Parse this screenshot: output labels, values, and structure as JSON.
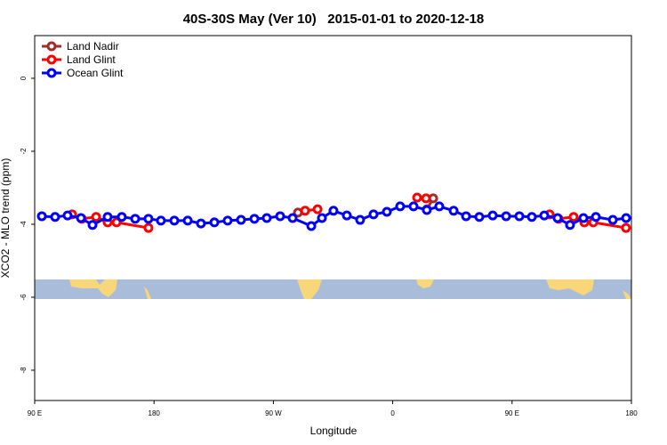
{
  "chart_data": {
    "type": "line",
    "title": "40S-30S May (Ver 10)   2015-01-01 to 2020-12-18",
    "xlabel": "Longitude",
    "ylabel": "XCO2 - MLO trend (ppm)",
    "xlim": [
      90,
      540
    ],
    "ylim": [
      -8.83,
      1.17
    ],
    "xticks": [
      {
        "value": 90,
        "label": "90 E"
      },
      180,
      {
        "value": 270,
        "label": "90 W"
      },
      {
        "value": 360,
        "label": "0"
      },
      {
        "value": 450,
        "label": "90 E"
      },
      {
        "value": 540,
        "label": "180"
      }
    ],
    "yticks": [
      0,
      -2,
      -4,
      -6,
      -8
    ],
    "legend": "top-left",
    "series": [
      {
        "name": "Land Nadir",
        "color": "#a52a2a",
        "x": [
          288.5,
          null,
          385.8,
          390.5
        ],
        "values": [
          -3.68,
          null,
          -3.59,
          -3.29
        ]
      },
      {
        "name": "Land Glint",
        "color": "#ff0000",
        "x": [
          118.2,
          125.5,
          136.3,
          145,
          151.7,
          175.8,
          null,
          293.9,
          303.3,
          null,
          378.4,
          385.1,
          null,
          478.3,
          485,
          496.4,
          504.5,
          511.2,
          535.9
        ],
        "values": [
          -3.73,
          -3.85,
          -3.8,
          -3.95,
          -3.95,
          -4.1,
          null,
          -3.63,
          -3.59,
          null,
          -3.27,
          -3.29,
          null,
          -3.73,
          -3.85,
          -3.8,
          -3.95,
          -3.95,
          -4.1
        ]
      },
      {
        "name": "Ocean Glint",
        "color": "#0000ff",
        "x": [
          95.4,
          105.4,
          114.8,
          124.9,
          133.6,
          145,
          155.7,
          165.8,
          175.8,
          185.2,
          195.3,
          205.4,
          215.4,
          225.5,
          235.5,
          245.6,
          255.7,
          265,
          275.1,
          284.5,
          298.6,
          306.6,
          315.3,
          325.4,
          335.4,
          345.5,
          355.6,
          365.6,
          375.7,
          385.7,
          395.1,
          405.9,
          415.3,
          425.3,
          435.4,
          445.5,
          455.5,
          464.9,
          474.3,
          484.3,
          493.7,
          503.8,
          513.2,
          526,
          536
        ],
        "values": [
          -3.78,
          -3.8,
          -3.76,
          -3.83,
          -4.02,
          -3.8,
          -3.8,
          -3.85,
          -3.85,
          -3.9,
          -3.9,
          -3.9,
          -3.98,
          -3.95,
          -3.9,
          -3.88,
          -3.85,
          -3.83,
          -3.78,
          -3.83,
          -4.05,
          -3.83,
          -3.63,
          -3.76,
          -3.88,
          -3.73,
          -3.66,
          -3.51,
          -3.51,
          -3.61,
          -3.51,
          -3.63,
          -3.78,
          -3.8,
          -3.76,
          -3.78,
          -3.78,
          -3.8,
          -3.76,
          -3.83,
          -4.02,
          -3.83,
          -3.8,
          -3.88,
          -3.83
        ]
      }
    ]
  }
}
